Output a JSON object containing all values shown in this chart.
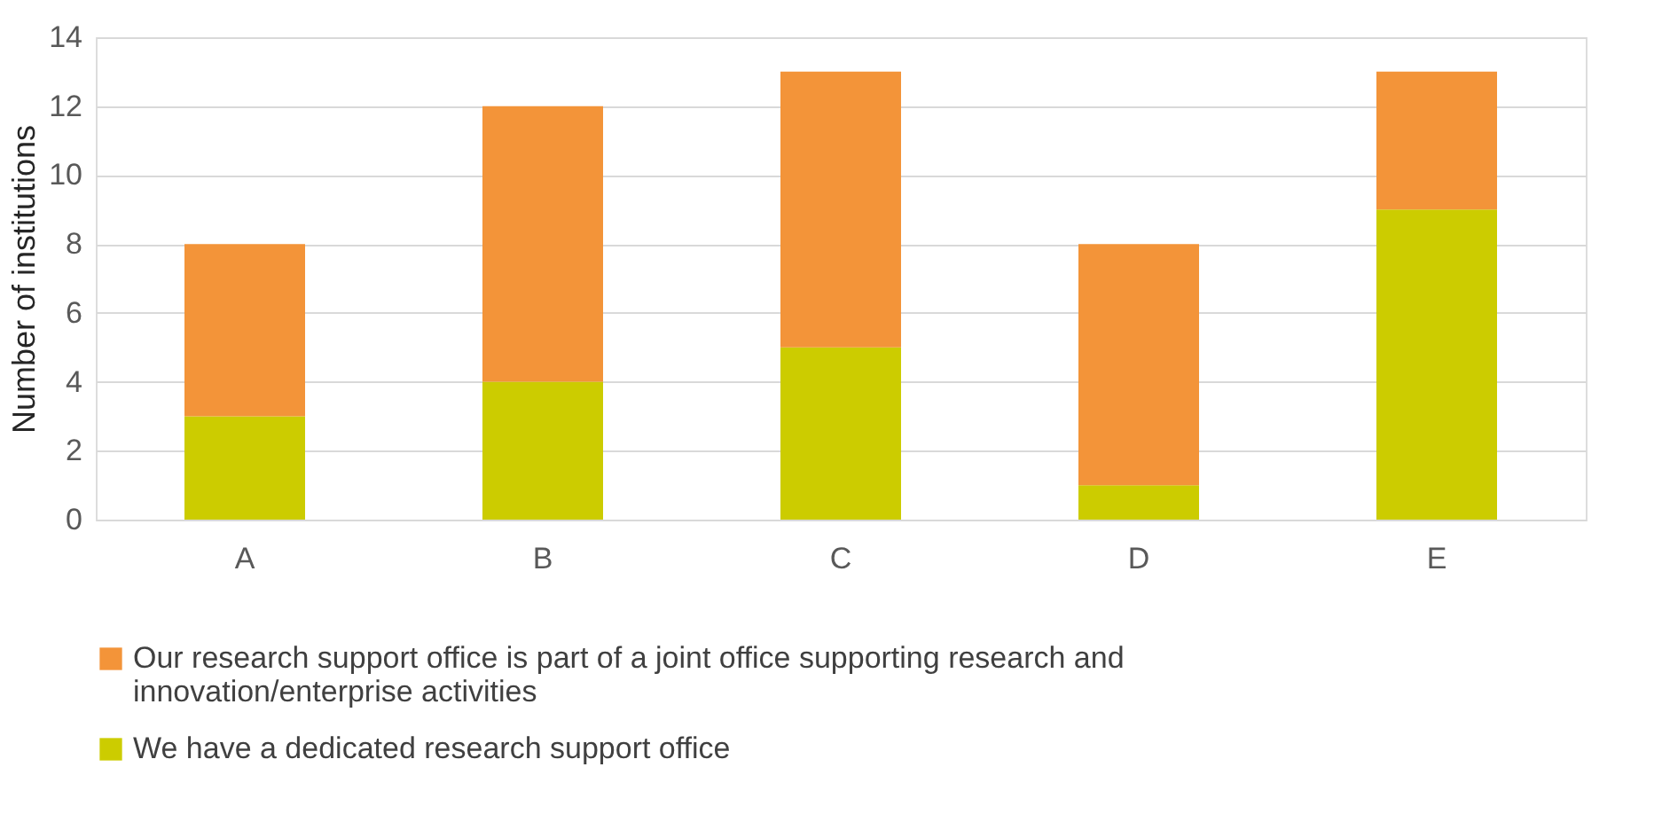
{
  "chart_data": {
    "type": "bar",
    "stacked": true,
    "ylabel": "Number of institutions",
    "categories": [
      "A",
      "B",
      "C",
      "D",
      "E"
    ],
    "series": [
      {
        "name": "We have a dedicated research support office",
        "color": "#cccc00",
        "values": [
          3,
          4,
          5,
          1,
          9
        ]
      },
      {
        "name": "Our research support office is part of a joint office supporting research and innovation/enterprise activities",
        "color": "#f39439",
        "values": [
          5,
          8,
          8,
          7,
          4
        ]
      }
    ],
    "ylim": [
      0,
      14
    ],
    "yticks": [
      0,
      2,
      4,
      6,
      8,
      10,
      12,
      14
    ],
    "grid": "y",
    "legend": "bottom"
  }
}
